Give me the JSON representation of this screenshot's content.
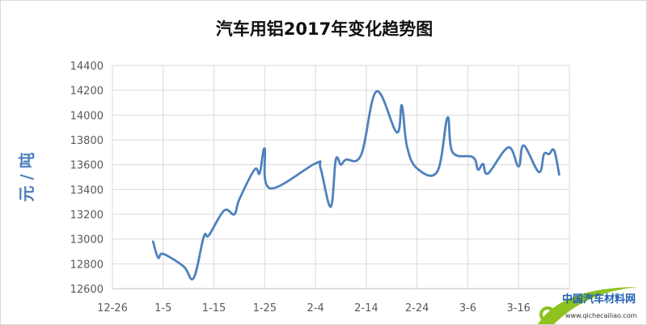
{
  "chart_data": {
    "type": "line",
    "title": "汽车用铝2017年变化趋势图",
    "xlabel": "",
    "ylabel": "元 / 吨",
    "ylim": [
      12600,
      14400
    ],
    "yticks": [
      12600,
      12800,
      13000,
      13200,
      13400,
      13600,
      13800,
      14000,
      14200,
      14400
    ],
    "xlim": [
      "2016-12-26",
      "2017-03-26"
    ],
    "xticks": [
      {
        "date": "2016-12-26",
        "label": "12-26"
      },
      {
        "date": "2017-01-05",
        "label": "1-5"
      },
      {
        "date": "2017-01-15",
        "label": "1-15"
      },
      {
        "date": "2017-01-25",
        "label": "1-25"
      },
      {
        "date": "2017-02-04",
        "label": "2-4"
      },
      {
        "date": "2017-02-14",
        "label": "2-14"
      },
      {
        "date": "2017-02-24",
        "label": "2-24"
      },
      {
        "date": "2017-03-06",
        "label": "3-6"
      },
      {
        "date": "2017-03-16",
        "label": "3-16"
      },
      {
        "date": "2017-03-26",
        "label": ""
      }
    ],
    "grid": true,
    "smooth": true,
    "color": "#4f81bd",
    "points": [
      [
        "2017-01-03",
        12980
      ],
      [
        "2017-01-04",
        12850
      ],
      [
        "2017-01-05",
        12880
      ],
      [
        "2017-01-09",
        12780
      ],
      [
        "2017-01-11",
        12685
      ],
      [
        "2017-01-13",
        13020
      ],
      [
        "2017-01-14",
        13030
      ],
      [
        "2017-01-17",
        13230
      ],
      [
        "2017-01-19",
        13200
      ],
      [
        "2017-01-20",
        13320
      ],
      [
        "2017-01-23",
        13560
      ],
      [
        "2017-01-24",
        13530
      ],
      [
        "2017-01-25",
        13730
      ],
      [
        "2017-01-26",
        13410
      ],
      [
        "2017-02-04",
        13610
      ],
      [
        "2017-02-05",
        13570
      ],
      [
        "2017-02-07",
        13260
      ],
      [
        "2017-02-08",
        13640
      ],
      [
        "2017-02-09",
        13600
      ],
      [
        "2017-02-10",
        13640
      ],
      [
        "2017-02-13",
        13680
      ],
      [
        "2017-02-16",
        14190
      ],
      [
        "2017-02-20",
        13860
      ],
      [
        "2017-02-21",
        14080
      ],
      [
        "2017-02-22",
        13750
      ],
      [
        "2017-02-24",
        13570
      ],
      [
        "2017-02-28",
        13545
      ],
      [
        "2017-03-02",
        13980
      ],
      [
        "2017-03-03",
        13700
      ],
      [
        "2017-03-07",
        13660
      ],
      [
        "2017-03-08",
        13560
      ],
      [
        "2017-03-09",
        13605
      ],
      [
        "2017-03-10",
        13530
      ],
      [
        "2017-03-14",
        13740
      ],
      [
        "2017-03-16",
        13585
      ],
      [
        "2017-03-17",
        13755
      ],
      [
        "2017-03-20",
        13540
      ],
      [
        "2017-03-21",
        13685
      ],
      [
        "2017-03-22",
        13685
      ],
      [
        "2017-03-23",
        13715
      ],
      [
        "2017-03-24",
        13520
      ]
    ]
  },
  "watermark": {
    "name": "中国汽车材料网",
    "url": "www.qichecailiao.com"
  }
}
